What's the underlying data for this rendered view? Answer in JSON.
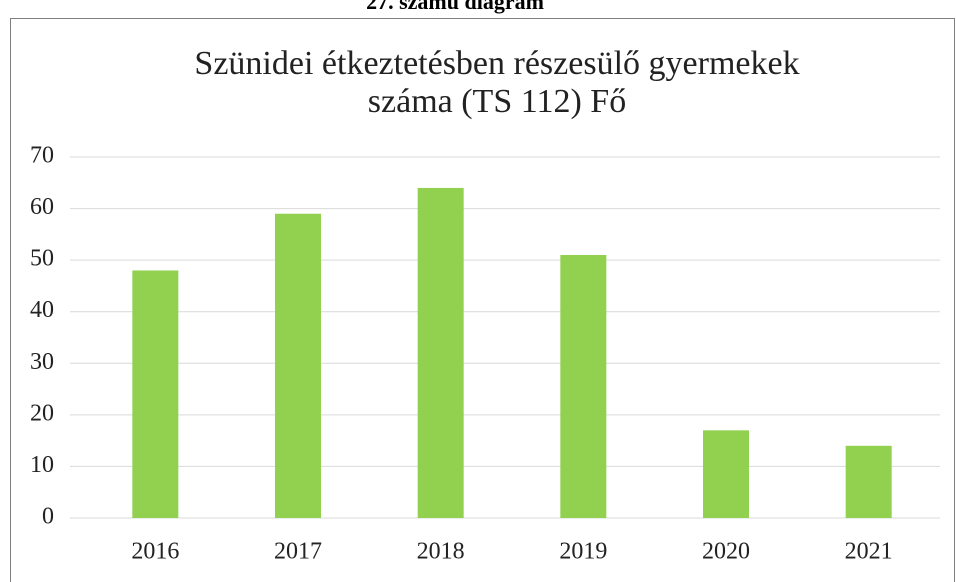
{
  "heading": "27. számú diagram",
  "chart_data": {
    "type": "bar",
    "title": [
      "Szünidei étkeztetésben részesülő gyermekek",
      "száma (TS 112) Fő"
    ],
    "categories": [
      "2016",
      "2017",
      "2018",
      "2019",
      "2020",
      "2021"
    ],
    "values": [
      48,
      59,
      64,
      51,
      17,
      14
    ],
    "color": "#92d050",
    "ylim": [
      0,
      70
    ],
    "yticks": [
      0,
      10,
      20,
      30,
      40,
      50,
      60,
      70
    ],
    "grid": true
  }
}
